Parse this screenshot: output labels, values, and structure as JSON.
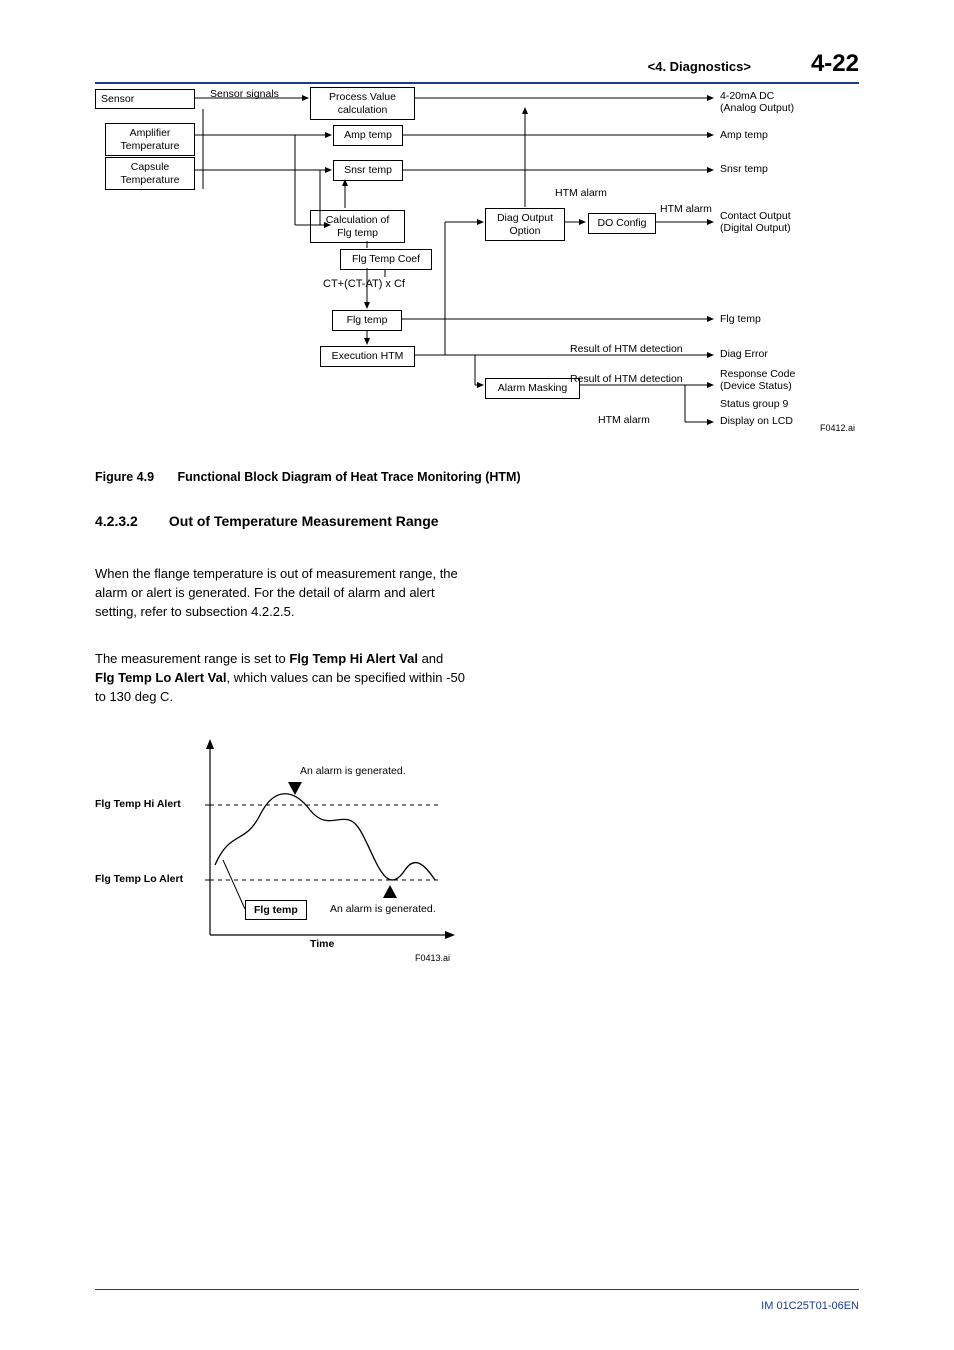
{
  "header": {
    "section": "<4.  Diagnostics>",
    "page": "4-22"
  },
  "figure1": {
    "caption_num": "Figure 4.9",
    "caption_title": "Functional Block Diagram of Heat Trace Monitoring (HTM)",
    "fileid": "F0412.ai",
    "boxes": {
      "sensor": "Sensor",
      "amp_temp_left": "Amplifier\nTemperature",
      "cap_temp_left": "Capsule\nTemperature",
      "pv_calc": "Process Value\ncalculation",
      "amp_temp_mid": "Amp temp",
      "snsr_temp_mid": "Snsr temp",
      "calc_flg": "Calculation of\nFlg temp",
      "flg_temp_coef": "Flg Temp Coef",
      "flg_temp_mid": "Flg temp",
      "exec_htm": "Execution HTM",
      "diag_output": "Diag Output\nOption",
      "do_config": "DO Config",
      "alarm_masking": "Alarm Masking"
    },
    "labels": {
      "sensor_signals": "Sensor signals",
      "formula": "CT+(CT-AT) x Cf",
      "htm_alarm": "HTM alarm",
      "result_htm": "Result of HTM detection",
      "out_420": "4-20mA DC\n(Analog Output)",
      "out_amp": "Amp temp",
      "out_snsr": "Snsr temp",
      "out_contact": "Contact Output\n(Digital Output)",
      "out_flg": "Flg temp",
      "out_diag": "Diag Error",
      "out_resp": "Response Code\n(Device Status)",
      "out_status": "Status group 9",
      "out_display": "Display on LCD"
    }
  },
  "section": {
    "number": "4.2.3.2",
    "title": "Out of Temperature Measurement Range"
  },
  "body": {
    "p1": "When the flange temperature is out of measurement range, the alarm or alert is generated. For the detail of alarm and alert setting, refer to subsection 4.2.2.5.",
    "p2_pre": "The measurement range is set to ",
    "p2_b1": "Flg Temp Hi Alert Val",
    "p2_mid": " and ",
    "p2_b2": "Flg Temp Lo Alert Val",
    "p2_post": ", which values can be specified within -50 to 130 deg C."
  },
  "figure2": {
    "hi_alert": "Flg Temp Hi Alert",
    "lo_alert": "Flg Temp Lo Alert",
    "alarm_top": "An alarm is generated.",
    "alarm_bot": "An alarm is generated.",
    "flg_temp": "Flg temp",
    "time": "Time",
    "fileid": "F0413.ai"
  },
  "footer": {
    "docid": "IM 01C25T01-06EN"
  }
}
